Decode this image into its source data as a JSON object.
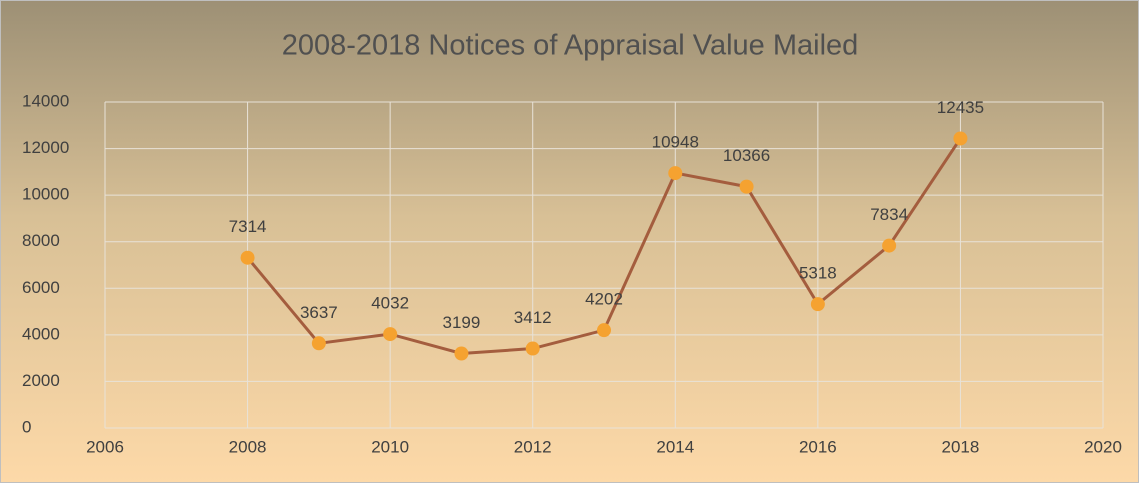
{
  "chart_data": {
    "type": "line",
    "title": "2008-2018 Notices of Appraisal Value Mailed",
    "x": [
      2008,
      2009,
      2010,
      2011,
      2012,
      2013,
      2014,
      2015,
      2016,
      2017,
      2018
    ],
    "values": [
      7314,
      3637,
      4032,
      3199,
      3412,
      4202,
      10948,
      10366,
      5318,
      7834,
      12435
    ],
    "color": "#a45d3e",
    "marker_color": "#f5a230",
    "xlim": [
      2006,
      2020
    ],
    "xticks": [
      2006,
      2008,
      2010,
      2012,
      2014,
      2016,
      2018,
      2020
    ],
    "ylim": [
      0,
      14000
    ],
    "yticks": [
      0,
      2000,
      4000,
      6000,
      8000,
      10000,
      12000,
      14000
    ],
    "grid": true
  }
}
